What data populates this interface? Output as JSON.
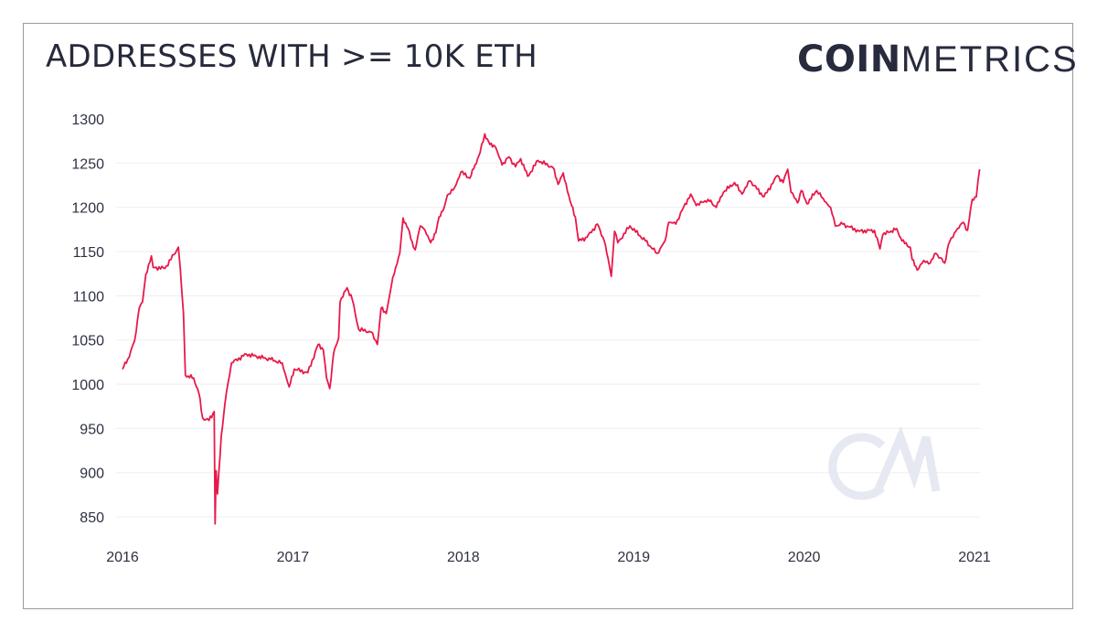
{
  "header": {
    "title": "ADDRESSES WITH >= 10K ETH",
    "logo_bold": "COIN",
    "logo_light": "METRICS",
    "watermark": "CM"
  },
  "chart_data": {
    "type": "line",
    "title": "ADDRESSES WITH >= 10K ETH",
    "xlabel": "",
    "ylabel": "",
    "ylim": [
      840,
      1300
    ],
    "xlim": [
      "2016-01-01",
      "2021-01-15"
    ],
    "yticks": [
      850,
      900,
      950,
      1000,
      1050,
      1100,
      1150,
      1200,
      1250,
      1300
    ],
    "xticks": [
      "2016",
      "2017",
      "2018",
      "2019",
      "2020",
      "2021"
    ],
    "grid": "horizontal",
    "line_color": "#e8194a",
    "watermark_color": "#e6e8f2",
    "series": [
      {
        "points": [
          [
            "2016-01-01",
            1017
          ],
          [
            "2016-01-12",
            1028
          ],
          [
            "2016-01-19",
            1038
          ],
          [
            "2016-01-27",
            1049
          ],
          [
            "2016-02-06",
            1086
          ],
          [
            "2016-02-13",
            1093
          ],
          [
            "2016-02-20",
            1124
          ],
          [
            "2016-03-03",
            1145
          ],
          [
            "2016-03-07",
            1132
          ],
          [
            "2016-04-01",
            1131
          ],
          [
            "2016-04-27",
            1152
          ],
          [
            "2016-04-30",
            1155
          ],
          [
            "2016-05-04",
            1131
          ],
          [
            "2016-05-11",
            1080
          ],
          [
            "2016-05-15",
            1010
          ],
          [
            "2016-06-02",
            1007
          ],
          [
            "2016-06-13",
            990
          ],
          [
            "2016-06-21",
            962
          ],
          [
            "2016-07-05",
            959
          ],
          [
            "2016-07-16",
            969
          ],
          [
            "2016-07-18",
            842
          ],
          [
            "2016-07-20",
            902
          ],
          [
            "2016-07-23",
            876
          ],
          [
            "2016-07-31",
            941
          ],
          [
            "2016-08-11",
            990
          ],
          [
            "2016-08-18",
            1010
          ],
          [
            "2016-08-22",
            1024
          ],
          [
            "2016-09-23",
            1034
          ],
          [
            "2016-11-14",
            1028
          ],
          [
            "2016-12-09",
            1024
          ],
          [
            "2016-12-24",
            997
          ],
          [
            "2017-01-04",
            1017
          ],
          [
            "2017-02-02",
            1013
          ],
          [
            "2017-02-24",
            1045
          ],
          [
            "2017-03-07",
            1039
          ],
          [
            "2017-03-14",
            1007
          ],
          [
            "2017-03-21",
            995
          ],
          [
            "2017-03-29",
            1034
          ],
          [
            "2017-04-09",
            1052
          ],
          [
            "2017-04-12",
            1093
          ],
          [
            "2017-04-27",
            1109
          ],
          [
            "2017-05-08",
            1096
          ],
          [
            "2017-05-22",
            1062
          ],
          [
            "2017-06-17",
            1059
          ],
          [
            "2017-07-01",
            1045
          ],
          [
            "2017-07-09",
            1086
          ],
          [
            "2017-07-20",
            1080
          ],
          [
            "2017-07-27",
            1100
          ],
          [
            "2017-08-03",
            1121
          ],
          [
            "2017-08-18",
            1148
          ],
          [
            "2017-08-25",
            1188
          ],
          [
            "2017-09-05",
            1176
          ],
          [
            "2017-09-16",
            1155
          ],
          [
            "2017-09-20",
            1152
          ],
          [
            "2017-10-01",
            1179
          ],
          [
            "2017-10-08",
            1176
          ],
          [
            "2017-10-23",
            1160
          ],
          [
            "2017-11-03",
            1171
          ],
          [
            "2017-11-10",
            1189
          ],
          [
            "2017-11-21",
            1200
          ],
          [
            "2017-11-28",
            1214
          ],
          [
            "2017-12-13",
            1222
          ],
          [
            "2017-12-27",
            1240
          ],
          [
            "2018-01-15",
            1233
          ],
          [
            "2018-01-26",
            1248
          ],
          [
            "2018-02-06",
            1262
          ],
          [
            "2018-02-16",
            1283
          ],
          [
            "2018-02-27",
            1271
          ],
          [
            "2018-03-10",
            1269
          ],
          [
            "2018-03-25",
            1248
          ],
          [
            "2018-04-09",
            1257
          ],
          [
            "2018-04-23",
            1246
          ],
          [
            "2018-05-04",
            1255
          ],
          [
            "2018-05-19",
            1235
          ],
          [
            "2018-06-10",
            1253
          ],
          [
            "2018-07-12",
            1245
          ],
          [
            "2018-07-23",
            1226
          ],
          [
            "2018-08-03",
            1239
          ],
          [
            "2018-08-18",
            1207
          ],
          [
            "2018-08-29",
            1189
          ],
          [
            "2018-09-05",
            1162
          ],
          [
            "2018-09-23",
            1166
          ],
          [
            "2018-10-15",
            1181
          ],
          [
            "2018-10-30",
            1162
          ],
          [
            "2018-11-10",
            1134
          ],
          [
            "2018-11-14",
            1122
          ],
          [
            "2018-11-21",
            1173
          ],
          [
            "2018-11-28",
            1160
          ],
          [
            "2018-12-24",
            1179
          ],
          [
            "2019-01-26",
            1162
          ],
          [
            "2019-02-20",
            1148
          ],
          [
            "2019-03-09",
            1162
          ],
          [
            "2019-03-17",
            1183
          ],
          [
            "2019-04-01",
            1181
          ],
          [
            "2019-04-15",
            1197
          ],
          [
            "2019-05-03",
            1215
          ],
          [
            "2019-05-15",
            1202
          ],
          [
            "2019-06-09",
            1209
          ],
          [
            "2019-06-27",
            1200
          ],
          [
            "2019-07-12",
            1217
          ],
          [
            "2019-08-05",
            1228
          ],
          [
            "2019-08-21",
            1215
          ],
          [
            "2019-09-07",
            1230
          ],
          [
            "2019-10-07",
            1212
          ],
          [
            "2019-11-05",
            1236
          ],
          [
            "2019-11-17",
            1228
          ],
          [
            "2019-11-27",
            1243
          ],
          [
            "2019-12-04",
            1217
          ],
          [
            "2019-12-18",
            1205
          ],
          [
            "2019-12-26",
            1219
          ],
          [
            "2020-01-07",
            1204
          ],
          [
            "2020-01-28",
            1219
          ],
          [
            "2020-02-11",
            1210
          ],
          [
            "2020-02-27",
            1200
          ],
          [
            "2020-03-08",
            1179
          ],
          [
            "2020-03-24",
            1181
          ],
          [
            "2020-04-28",
            1173
          ],
          [
            "2020-05-31",
            1174
          ],
          [
            "2020-06-12",
            1153
          ],
          [
            "2020-06-18",
            1169
          ],
          [
            "2020-07-18",
            1176
          ],
          [
            "2020-07-29",
            1162
          ],
          [
            "2020-08-16",
            1155
          ],
          [
            "2020-08-20",
            1141
          ],
          [
            "2020-08-31",
            1129
          ],
          [
            "2020-09-14",
            1140
          ],
          [
            "2020-09-28",
            1137
          ],
          [
            "2020-10-10",
            1148
          ],
          [
            "2020-10-29",
            1137
          ],
          [
            "2020-11-06",
            1158
          ],
          [
            "2020-11-22",
            1173
          ],
          [
            "2020-12-08",
            1183
          ],
          [
            "2020-12-17",
            1174
          ],
          [
            "2020-12-27",
            1209
          ],
          [
            "2021-01-05",
            1212
          ],
          [
            "2021-01-12",
            1243
          ]
        ]
      }
    ]
  }
}
